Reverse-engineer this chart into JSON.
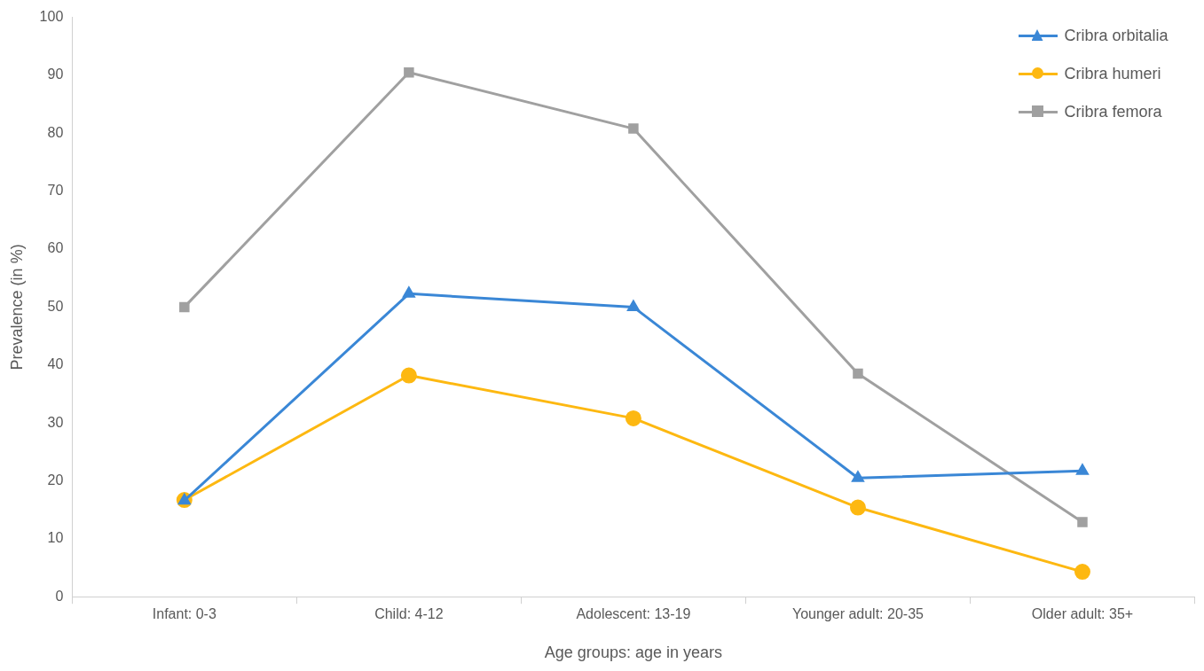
{
  "chart_data": {
    "type": "line",
    "xlabel": "Age groups: age in years",
    "ylabel": "Prevalence (in %)",
    "categories": [
      "Infant: 0-3",
      "Child: 4-12",
      "Adolescent: 13-19",
      "Younger adult: 20-35",
      "Older adult: 35+"
    ],
    "series": [
      {
        "name": "Cribra orbitalia",
        "color": "#3a87d6",
        "marker": "triangle",
        "values": [
          16.6,
          52.3,
          50,
          20.5,
          21.7
        ]
      },
      {
        "name": "Cribra humeri",
        "color": "#fdb811",
        "marker": "circle",
        "values": [
          16.7,
          38.2,
          30.8,
          15.4,
          4.3
        ]
      },
      {
        "name": "Cribra femora",
        "color": "#a0a0a0",
        "marker": "square",
        "values": [
          50,
          90.5,
          80.8,
          38.5,
          12.9
        ]
      }
    ],
    "ylim": [
      0,
      100
    ],
    "yticks": [
      0,
      10,
      20,
      30,
      40,
      50,
      60,
      70,
      80,
      90,
      100
    ],
    "grid": false,
    "legend": "top right",
    "line_style": "solid"
  }
}
